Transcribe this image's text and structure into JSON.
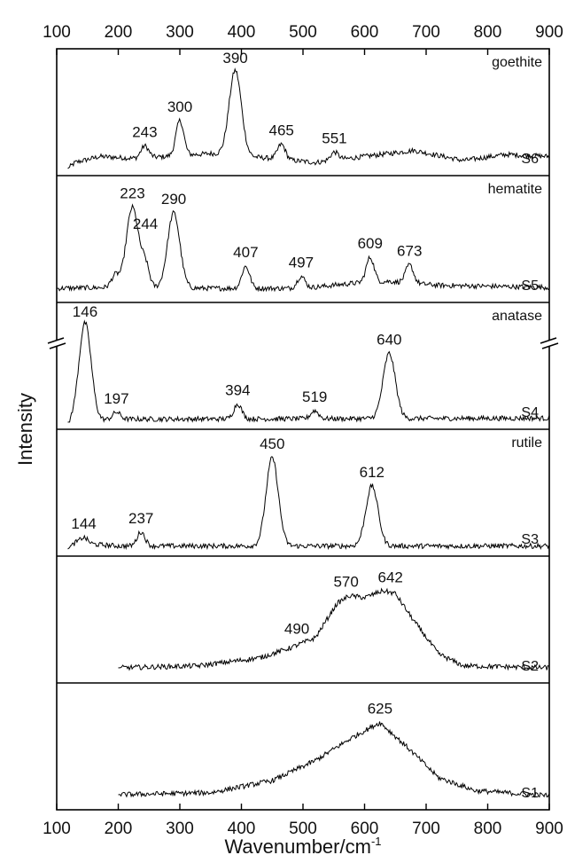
{
  "chart_data": {
    "type": "line",
    "xlabel": "Wavenumber/cm",
    "xlabel_superscript": "-1",
    "ylabel": "Intensity",
    "xlim": [
      100,
      900
    ],
    "x_ticks": [
      100,
      200,
      300,
      400,
      500,
      600,
      700,
      800,
      900
    ],
    "top_axis_ticks": true,
    "y_axis_break": true,
    "panels": [
      {
        "sample": "S6",
        "mineral": "goethite",
        "x_start": 118,
        "peaks": [
          {
            "x": 243,
            "label": "243",
            "h": 0.12
          },
          {
            "x": 300,
            "label": "300",
            "h": 0.35
          },
          {
            "x": 390,
            "label": "390",
            "h": 0.85
          },
          {
            "x": 465,
            "label": "465",
            "h": 0.15
          },
          {
            "x": 551,
            "label": "551",
            "h": 0.08
          }
        ],
        "base": [
          {
            "x": 118,
            "y": 0.0
          },
          {
            "x": 130,
            "y": 0.06
          },
          {
            "x": 170,
            "y": 0.12
          },
          {
            "x": 230,
            "y": 0.1
          },
          {
            "x": 350,
            "y": 0.15
          },
          {
            "x": 450,
            "y": 0.1
          },
          {
            "x": 520,
            "y": 0.06
          },
          {
            "x": 600,
            "y": 0.12
          },
          {
            "x": 680,
            "y": 0.18
          },
          {
            "x": 760,
            "y": 0.08
          },
          {
            "x": 830,
            "y": 0.14
          },
          {
            "x": 900,
            "y": 0.12
          }
        ]
      },
      {
        "sample": "S5",
        "mineral": "hematite",
        "x_start": 100,
        "peaks": [
          {
            "x": 195,
            "label": "",
            "h": 0.12
          },
          {
            "x": 223,
            "label": "223",
            "h": 0.8
          },
          {
            "x": 244,
            "label": "244",
            "h": 0.22
          },
          {
            "x": 290,
            "label": "290",
            "h": 0.75
          },
          {
            "x": 407,
            "label": "407",
            "h": 0.22
          },
          {
            "x": 497,
            "label": "497",
            "h": 0.12
          },
          {
            "x": 609,
            "label": "609",
            "h": 0.25
          },
          {
            "x": 673,
            "label": "673",
            "h": 0.18
          }
        ],
        "base": [
          {
            "x": 100,
            "y": 0.07
          },
          {
            "x": 200,
            "y": 0.08
          },
          {
            "x": 350,
            "y": 0.07
          },
          {
            "x": 500,
            "y": 0.07
          },
          {
            "x": 580,
            "y": 0.12
          },
          {
            "x": 640,
            "y": 0.14
          },
          {
            "x": 720,
            "y": 0.1
          },
          {
            "x": 900,
            "y": 0.08
          }
        ]
      },
      {
        "sample": "S4",
        "mineral": "anatase",
        "x_start": 118,
        "peaks": [
          {
            "x": 146,
            "label": "146",
            "h": 0.98
          },
          {
            "x": 197,
            "label": "197",
            "h": 0.07
          },
          {
            "x": 394,
            "label": "394",
            "h": 0.15
          },
          {
            "x": 519,
            "label": "519",
            "h": 0.08
          },
          {
            "x": 640,
            "label": "640",
            "h": 0.65
          }
        ],
        "base": [
          {
            "x": 118,
            "y": 0.0
          },
          {
            "x": 200,
            "y": 0.03
          },
          {
            "x": 900,
            "y": 0.04
          }
        ]
      },
      {
        "sample": "S3",
        "mineral": "rutile",
        "x_start": 118,
        "peaks": [
          {
            "x": 144,
            "label": "144",
            "h": 0.06
          },
          {
            "x": 237,
            "label": "237",
            "h": 0.14
          },
          {
            "x": 450,
            "label": "450",
            "h": 0.88
          },
          {
            "x": 612,
            "label": "612",
            "h": 0.6
          }
        ],
        "base": [
          {
            "x": 118,
            "y": 0.0
          },
          {
            "x": 130,
            "y": 0.06
          },
          {
            "x": 200,
            "y": 0.03
          },
          {
            "x": 900,
            "y": 0.03
          }
        ]
      },
      {
        "sample": "S2",
        "mineral": "",
        "x_start": 200,
        "peaks": [
          {
            "x": 490,
            "label": "490",
            "h": 0.0
          },
          {
            "x": 570,
            "label": "570",
            "h": 0.0
          },
          {
            "x": 642,
            "label": "642",
            "h": 0.0
          }
        ],
        "base": [
          {
            "x": 200,
            "y": 0.08
          },
          {
            "x": 330,
            "y": 0.1
          },
          {
            "x": 430,
            "y": 0.18
          },
          {
            "x": 480,
            "y": 0.28
          },
          {
            "x": 520,
            "y": 0.38
          },
          {
            "x": 555,
            "y": 0.72
          },
          {
            "x": 575,
            "y": 0.8
          },
          {
            "x": 600,
            "y": 0.78
          },
          {
            "x": 630,
            "y": 0.85
          },
          {
            "x": 650,
            "y": 0.82
          },
          {
            "x": 680,
            "y": 0.55
          },
          {
            "x": 720,
            "y": 0.22
          },
          {
            "x": 760,
            "y": 0.1
          },
          {
            "x": 900,
            "y": 0.08
          }
        ]
      },
      {
        "sample": "S1",
        "mineral": "",
        "x_start": 200,
        "peaks": [
          {
            "x": 625,
            "label": "625",
            "h": 0.0
          }
        ],
        "base": [
          {
            "x": 200,
            "y": 0.08
          },
          {
            "x": 350,
            "y": 0.1
          },
          {
            "x": 450,
            "y": 0.22
          },
          {
            "x": 520,
            "y": 0.42
          },
          {
            "x": 580,
            "y": 0.65
          },
          {
            "x": 625,
            "y": 0.8
          },
          {
            "x": 670,
            "y": 0.55
          },
          {
            "x": 720,
            "y": 0.25
          },
          {
            "x": 780,
            "y": 0.12
          },
          {
            "x": 900,
            "y": 0.07
          }
        ]
      }
    ]
  }
}
